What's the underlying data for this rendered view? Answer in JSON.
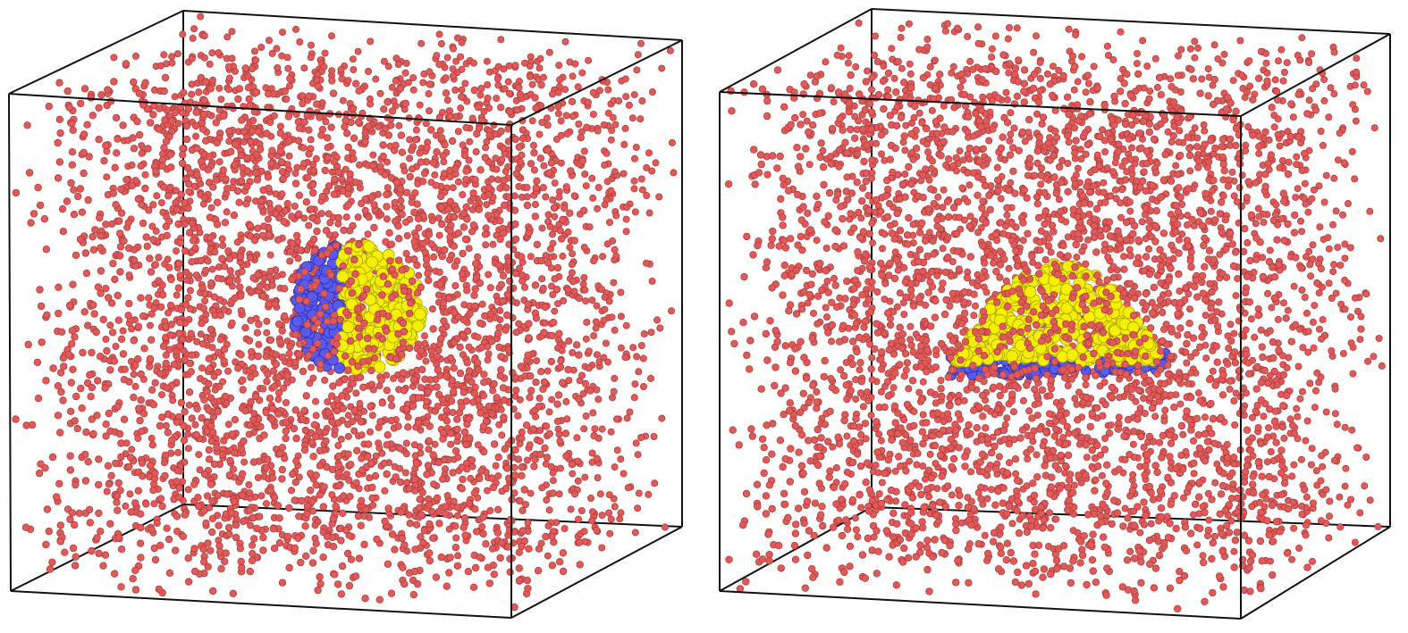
{
  "colors": {
    "background": "#ffffff",
    "solvent_particle": "#e05a5a",
    "solvent_particle_edge": "#b03c3c",
    "cluster_a": "#f5f000",
    "cluster_a_edge": "#a8a000",
    "cluster_b": "#5a5aee",
    "cluster_b_edge": "#3030a8",
    "box_edge": "#111111"
  },
  "panels": [
    {
      "name": "left",
      "cluster_shape": "sphere-split"
    },
    {
      "name": "right",
      "cluster_shape": "dome-on-layer"
    }
  ]
}
